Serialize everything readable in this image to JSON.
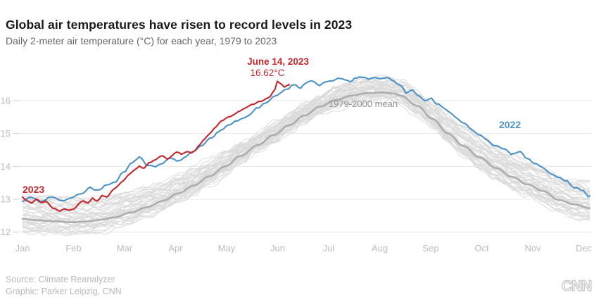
{
  "header": {
    "title": "Global air temperatures have risen to record levels in 2023",
    "subtitle": "Daily 2-meter air temperature (°C) for each year, 1979 to 2023"
  },
  "footer": {
    "source_line": "Source: Climate Reanalyzer",
    "credit_line": "Graphic: Parker Leipzig, CNN",
    "logo_text": "CNN"
  },
  "colors": {
    "red_2023": "#c2282d",
    "blue_2022": "#4e93c6",
    "mean_gray": "#adadad",
    "background_gray": "#dadada",
    "gridline": "#e8e8e8",
    "axis_text": "#bcbcbc",
    "annotation_gray": "#8f8f8f",
    "title_text": "#1a1a1a",
    "subtitle_text": "#666666",
    "footer_text": "#b9b9b9"
  },
  "chart_data": {
    "type": "line",
    "title": "Global air temperatures have risen to record levels in 2023",
    "subtitle": "Daily 2-meter air temperature (°C) for each year, 1979 to 2023",
    "x_unit": "day of year",
    "x_tick_labels": [
      "Jan",
      "Feb",
      "Mar",
      "Apr",
      "May",
      "Jun",
      "Jul",
      "Aug",
      "Sep",
      "Oct",
      "Nov",
      "Dec"
    ],
    "y_ticks": [
      12,
      13,
      14,
      15,
      16
    ],
    "y_unit": "°C",
    "ylim": [
      11.8,
      17.1
    ],
    "grid": "horizontal only",
    "legend": "inline labels on lines",
    "annotations": [
      {
        "id": "peak-date",
        "text": "June 14, 2023",
        "color": "#c2282d"
      },
      {
        "id": "peak-value",
        "text": "16.62°C",
        "color": "#c2282d"
      },
      {
        "id": "mean-label",
        "text": "1979-2000 mean",
        "color": "#8f8f8f"
      },
      {
        "id": "label-2022",
        "text": "2022",
        "color": "#4e93c6"
      },
      {
        "id": "label-2023",
        "text": "2023",
        "color": "#c2282d"
      }
    ],
    "peak_point": {
      "series": "2023",
      "date": "June 14, 2023",
      "day_of_year": 164,
      "value_c": 16.62
    },
    "background_years": {
      "first": 1979,
      "last": 2021,
      "count": 43,
      "description": "Thin gray daily lines, one per year 1979-2021, forming a band around the 1979-2000 mean; band approx ±0.45°C (skewed warm +0.9 recent years) in winter, approx ±0.4°C in summer",
      "color": "#dadada"
    },
    "series": [
      {
        "name": "1979-2000 mean",
        "color": "#adadad",
        "width": 2.6,
        "points": [
          [
            0,
            12.4
          ],
          [
            10,
            12.36
          ],
          [
            20,
            12.33
          ],
          [
            31,
            12.3
          ],
          [
            41,
            12.32
          ],
          [
            51,
            12.38
          ],
          [
            59,
            12.45
          ],
          [
            70,
            12.6
          ],
          [
            80,
            12.76
          ],
          [
            90,
            12.95
          ],
          [
            100,
            13.18
          ],
          [
            110,
            13.42
          ],
          [
            120,
            13.7
          ],
          [
            130,
            14.0
          ],
          [
            140,
            14.32
          ],
          [
            151,
            14.65
          ],
          [
            161,
            14.95
          ],
          [
            171,
            15.25
          ],
          [
            181,
            15.55
          ],
          [
            191,
            15.82
          ],
          [
            201,
            16.02
          ],
          [
            211,
            16.15
          ],
          [
            221,
            16.23
          ],
          [
            231,
            16.25
          ],
          [
            238,
            16.22
          ],
          [
            243,
            16.15
          ],
          [
            253,
            15.85
          ],
          [
            263,
            15.45
          ],
          [
            273,
            15.0
          ],
          [
            283,
            14.62
          ],
          [
            293,
            14.28
          ],
          [
            304,
            13.95
          ],
          [
            314,
            13.68
          ],
          [
            324,
            13.45
          ],
          [
            334,
            13.25
          ],
          [
            344,
            12.98
          ],
          [
            354,
            12.84
          ],
          [
            364,
            12.73
          ]
        ]
      },
      {
        "name": "2022",
        "color": "#4e93c6",
        "width": 2.1,
        "points": [
          [
            0,
            12.95
          ],
          [
            6,
            13.05
          ],
          [
            12,
            12.92
          ],
          [
            18,
            13.06
          ],
          [
            24,
            12.95
          ],
          [
            31,
            13.02
          ],
          [
            37,
            13.15
          ],
          [
            43,
            13.35
          ],
          [
            48,
            13.26
          ],
          [
            54,
            13.42
          ],
          [
            59,
            13.55
          ],
          [
            65,
            13.85
          ],
          [
            70,
            14.1
          ],
          [
            75,
            14.28
          ],
          [
            80,
            14.05
          ],
          [
            85,
            14.0
          ],
          [
            90,
            14.12
          ],
          [
            95,
            14.25
          ],
          [
            100,
            14.18
          ],
          [
            105,
            14.32
          ],
          [
            110,
            14.45
          ],
          [
            115,
            14.6
          ],
          [
            120,
            14.82
          ],
          [
            126,
            15.05
          ],
          [
            132,
            15.22
          ],
          [
            138,
            15.38
          ],
          [
            144,
            15.52
          ],
          [
            151,
            15.78
          ],
          [
            157,
            15.95
          ],
          [
            162,
            16.1
          ],
          [
            166,
            16.25
          ],
          [
            170,
            16.35
          ],
          [
            174,
            16.48
          ],
          [
            178,
            16.4
          ],
          [
            182,
            16.52
          ],
          [
            186,
            16.6
          ],
          [
            190,
            16.46
          ],
          [
            195,
            16.56
          ],
          [
            200,
            16.62
          ],
          [
            205,
            16.68
          ],
          [
            210,
            16.6
          ],
          [
            214,
            16.72
          ],
          [
            218,
            16.75
          ],
          [
            222,
            16.68
          ],
          [
            226,
            16.73
          ],
          [
            230,
            16.65
          ],
          [
            234,
            16.7
          ],
          [
            238,
            16.58
          ],
          [
            243,
            16.45
          ],
          [
            246,
            16.22
          ],
          [
            250,
            16.32
          ],
          [
            254,
            16.12
          ],
          [
            258,
            15.96
          ],
          [
            262,
            16.06
          ],
          [
            266,
            15.9
          ],
          [
            270,
            15.8
          ],
          [
            274,
            15.65
          ],
          [
            278,
            15.48
          ],
          [
            283,
            15.32
          ],
          [
            288,
            15.15
          ],
          [
            293,
            14.95
          ],
          [
            298,
            14.82
          ],
          [
            304,
            14.62
          ],
          [
            309,
            14.5
          ],
          [
            314,
            14.36
          ],
          [
            319,
            14.44
          ],
          [
            324,
            14.22
          ],
          [
            329,
            14.05
          ],
          [
            334,
            13.92
          ],
          [
            339,
            13.78
          ],
          [
            344,
            13.66
          ],
          [
            349,
            13.56
          ],
          [
            354,
            13.36
          ],
          [
            359,
            13.28
          ],
          [
            364,
            13.1
          ]
        ]
      },
      {
        "name": "2023",
        "color": "#c2282d",
        "width": 2.1,
        "points": [
          [
            0,
            13.05
          ],
          [
            3,
            12.96
          ],
          [
            6,
            12.9
          ],
          [
            9,
            12.98
          ],
          [
            12,
            12.86
          ],
          [
            15,
            12.92
          ],
          [
            18,
            12.78
          ],
          [
            21,
            12.72
          ],
          [
            24,
            12.64
          ],
          [
            27,
            12.72
          ],
          [
            30,
            12.66
          ],
          [
            33,
            12.74
          ],
          [
            36,
            12.88
          ],
          [
            39,
            12.96
          ],
          [
            42,
            12.86
          ],
          [
            45,
            13.0
          ],
          [
            48,
            12.94
          ],
          [
            51,
            13.1
          ],
          [
            54,
            13.06
          ],
          [
            57,
            13.22
          ],
          [
            60,
            13.36
          ],
          [
            63,
            13.52
          ],
          [
            66,
            13.62
          ],
          [
            69,
            13.76
          ],
          [
            72,
            13.92
          ],
          [
            75,
            14.02
          ],
          [
            78,
            13.96
          ],
          [
            81,
            14.1
          ],
          [
            84,
            14.16
          ],
          [
            87,
            14.26
          ],
          [
            90,
            14.32
          ],
          [
            93,
            14.22
          ],
          [
            96,
            14.36
          ],
          [
            99,
            14.42
          ],
          [
            102,
            14.36
          ],
          [
            105,
            14.46
          ],
          [
            108,
            14.42
          ],
          [
            111,
            14.52
          ],
          [
            114,
            14.66
          ],
          [
            117,
            14.82
          ],
          [
            120,
            15.0
          ],
          [
            124,
            15.18
          ],
          [
            128,
            15.38
          ],
          [
            132,
            15.5
          ],
          [
            136,
            15.6
          ],
          [
            140,
            15.7
          ],
          [
            144,
            15.8
          ],
          [
            148,
            15.9
          ],
          [
            152,
            16.0
          ],
          [
            156,
            16.08
          ],
          [
            159,
            16.18
          ],
          [
            161,
            16.3
          ],
          [
            164,
            16.62
          ],
          [
            166,
            16.5
          ],
          [
            168,
            16.44
          ],
          [
            171,
            16.5
          ]
        ]
      }
    ]
  }
}
